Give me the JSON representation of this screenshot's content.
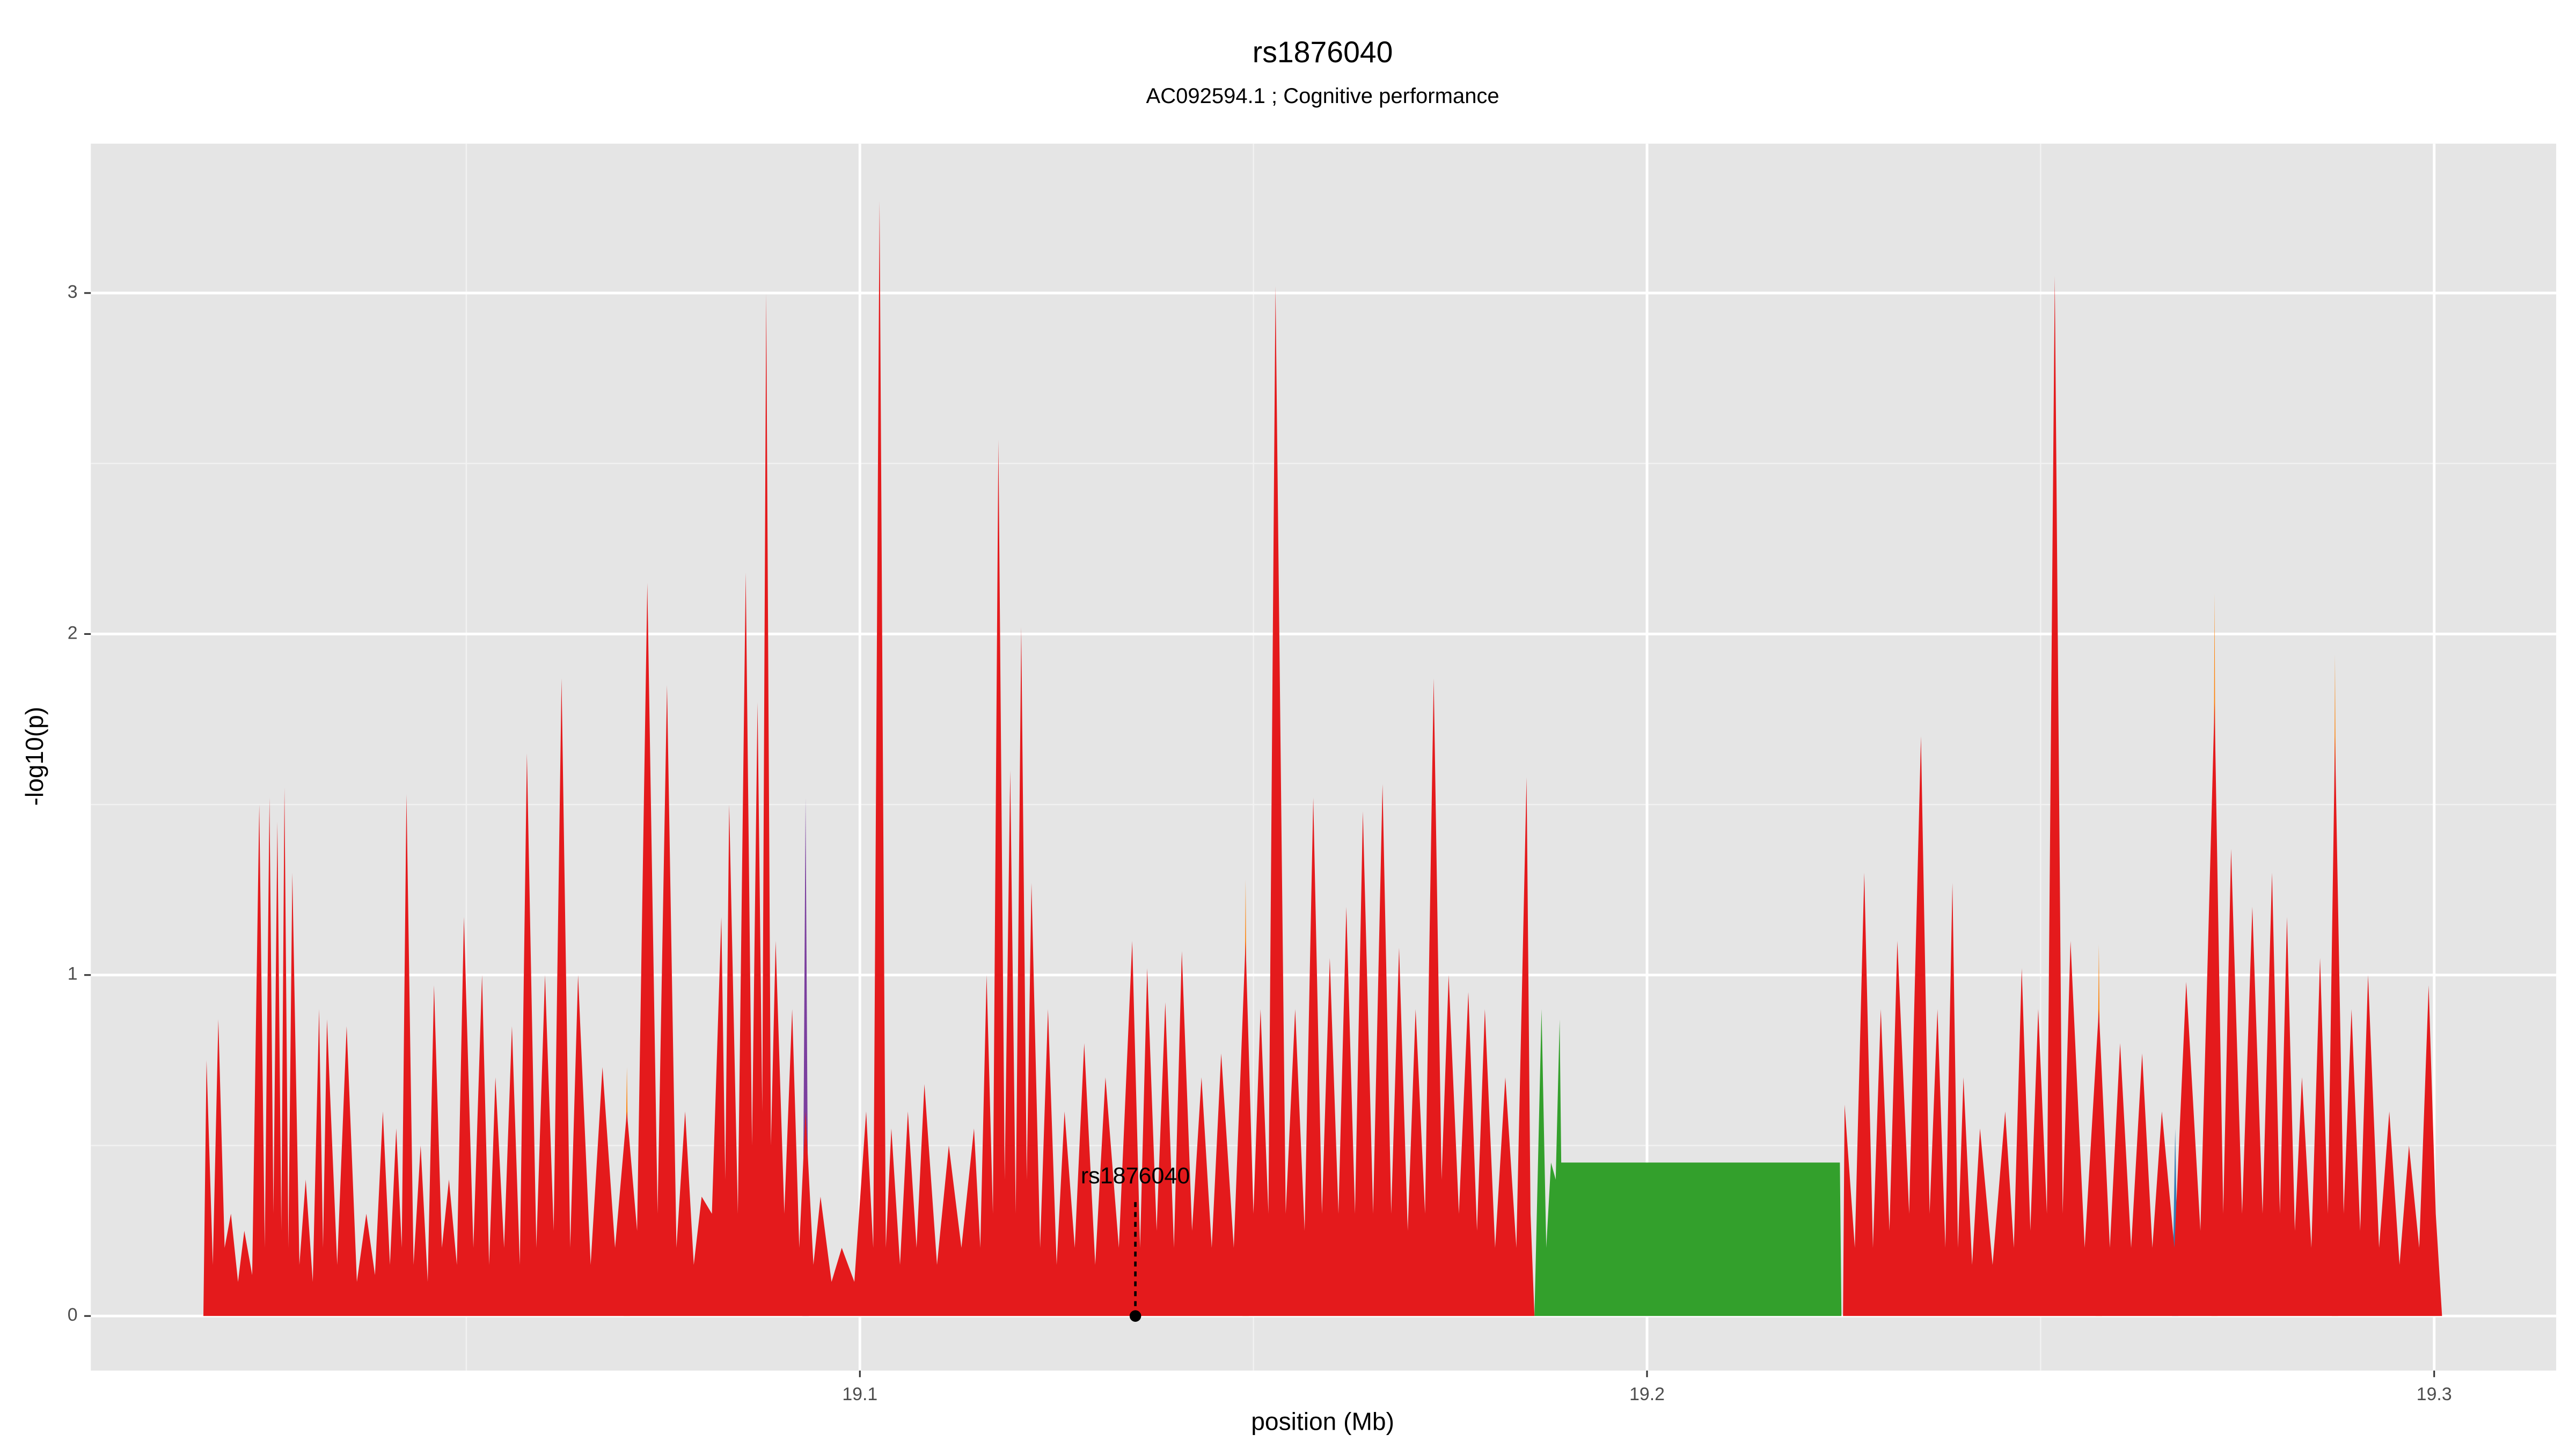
{
  "chart_data": {
    "type": "area",
    "title": "rs1876040",
    "subtitle": "AC092594.1 ; Cognitive performance",
    "xlabel": "position (Mb)",
    "ylabel": "-log10(p)",
    "xlim": [
      19.0023,
      19.3155
    ],
    "ylim": [
      -0.16,
      3.438
    ],
    "xticks": [
      19.1,
      19.2,
      19.3
    ],
    "yticks": [
      0,
      1,
      2,
      3
    ],
    "grid": true,
    "annotation": {
      "text": "rs1876040",
      "x": 19.135,
      "y": 0
    },
    "series": [
      {
        "color": "#377eb8",
        "x": [
          19.2667,
          19.2671,
          19.2675
        ],
        "values": [
          0,
          0.55,
          0
        ]
      },
      {
        "color": "#7b3f9e",
        "x": [
          19.0927,
          19.0931,
          19.0935
        ],
        "values": [
          0,
          1.52,
          0
        ]
      },
      {
        "color": "#ff7f00",
        "x": [
          19.07,
          19.0704,
          19.0708,
          19.1486,
          19.149,
          19.1494,
          19.257,
          19.2574,
          19.2578,
          19.2717,
          19.2721,
          19.2725,
          19.287,
          19.2874,
          19.2878
        ],
        "values": [
          0,
          0.73,
          0,
          0,
          1.28,
          0,
          0,
          1.09,
          0,
          0,
          2.12,
          0,
          0,
          1.94,
          0
        ]
      },
      {
        "color": "#e41a1c",
        "x": [
          19.0166,
          19.017,
          19.0178,
          19.0185,
          19.0193,
          19.0201,
          19.021,
          19.0218,
          19.0228,
          19.0237,
          19.0244,
          19.025,
          19.0255,
          19.026,
          19.0265,
          19.0269,
          19.0274,
          19.0279,
          19.0288,
          19.0296,
          19.0305,
          19.0313,
          19.0318,
          19.0323,
          19.0336,
          19.0348,
          19.0361,
          19.0373,
          19.0384,
          19.0394,
          19.0403,
          19.0411,
          19.0418,
          19.0424,
          19.0433,
          19.0442,
          19.0451,
          19.0459,
          19.0469,
          19.0478,
          19.0488,
          19.0497,
          19.0509,
          19.052,
          19.0529,
          19.0537,
          19.0548,
          19.0558,
          19.0568,
          19.0577,
          19.0589,
          19.06,
          19.0611,
          19.0621,
          19.0632,
          19.0642,
          19.0658,
          19.0673,
          19.0689,
          19.0704,
          19.0717,
          19.073,
          19.0743,
          19.0755,
          19.0767,
          19.0778,
          19.0789,
          19.0799,
          19.0812,
          19.0824,
          19.0829,
          19.0834,
          19.0845,
          19.0855,
          19.0863,
          19.087,
          19.0876,
          19.0881,
          19.0887,
          19.0893,
          19.0904,
          19.0914,
          19.0923,
          19.0931,
          19.0941,
          19.095,
          19.0964,
          19.0977,
          19.0993,
          19.1008,
          19.1017,
          19.1025,
          19.1033,
          19.104,
          19.1051,
          19.1061,
          19.1072,
          19.1082,
          19.1098,
          19.1113,
          19.1129,
          19.1145,
          19.1153,
          19.1161,
          19.1169,
          19.1176,
          19.1184,
          19.1191,
          19.1198,
          19.1205,
          19.1212,
          19.1218,
          19.1229,
          19.1239,
          19.125,
          19.126,
          19.1273,
          19.1285,
          19.1299,
          19.1312,
          19.1329,
          19.1346,
          19.1356,
          19.1365,
          19.1377,
          19.1388,
          19.1399,
          19.1409,
          19.1422,
          19.1434,
          19.1447,
          19.1459,
          19.1475,
          19.149,
          19.15,
          19.1509,
          19.1519,
          19.1528,
          19.1541,
          19.1553,
          19.1565,
          19.1576,
          19.1587,
          19.1597,
          19.1608,
          19.1618,
          19.1629,
          19.1639,
          19.1652,
          19.1664,
          19.1675,
          19.1685,
          19.1696,
          19.1706,
          19.1718,
          19.1729,
          19.1739,
          19.1748,
          19.1761,
          19.1773,
          19.1784,
          19.1794,
          19.1807,
          19.182,
          19.1834,
          19.1847,
          19.1852,
          19.1857,
          19.2053,
          19.2249,
          19.2251,
          19.2264,
          19.2276,
          19.2287,
          19.2297,
          19.2308,
          19.2318,
          19.2333,
          19.2348,
          19.2359,
          19.2369,
          19.2379,
          19.2388,
          19.2395,
          19.2402,
          19.2413,
          19.2423,
          19.2439,
          19.2455,
          19.2466,
          19.2476,
          19.2487,
          19.2497,
          19.2508,
          19.2518,
          19.2528,
          19.2538,
          19.2556,
          19.2574,
          19.2588,
          19.2601,
          19.2615,
          19.2629,
          19.2642,
          19.2654,
          19.267,
          19.2685,
          19.2703,
          19.2721,
          19.2732,
          19.2742,
          19.2756,
          19.2769,
          19.2782,
          19.2794,
          19.2804,
          19.2813,
          19.2823,
          19.2832,
          19.2844,
          19.2855,
          19.2865,
          19.2874,
          19.2885,
          19.2895,
          19.2906,
          19.2916,
          19.293,
          19.2943,
          19.2956,
          19.2968,
          19.2981,
          19.2993,
          19.3002,
          19.301
        ],
        "values": [
          0,
          0.75,
          0.15,
          0.87,
          0.2,
          0.3,
          0.1,
          0.25,
          0.12,
          1.5,
          0.2,
          1.52,
          0.3,
          1.45,
          0.25,
          1.55,
          0.2,
          1.3,
          0.15,
          0.4,
          0.1,
          0.9,
          0.2,
          0.87,
          0.15,
          0.85,
          0.1,
          0.3,
          0.12,
          0.6,
          0.15,
          0.55,
          0.2,
          1.53,
          0.15,
          0.5,
          0.1,
          0.97,
          0.2,
          0.4,
          0.15,
          1.17,
          0.2,
          1.0,
          0.15,
          0.7,
          0.2,
          0.85,
          0.15,
          1.65,
          0.2,
          1.0,
          0.25,
          1.87,
          0.2,
          1.0,
          0.15,
          0.73,
          0.2,
          0.6,
          0.25,
          2.15,
          0.3,
          1.85,
          0.2,
          0.6,
          0.15,
          0.35,
          0.3,
          1.17,
          0.4,
          1.5,
          0.3,
          2.18,
          0.5,
          1.8,
          0.6,
          3.0,
          0.5,
          1.1,
          0.3,
          0.9,
          0.2,
          0.6,
          0.15,
          0.35,
          0.1,
          0.2,
          0.1,
          0.6,
          0.2,
          3.27,
          0.2,
          0.55,
          0.15,
          0.6,
          0.2,
          0.68,
          0.15,
          0.5,
          0.2,
          0.55,
          0.2,
          1.0,
          0.3,
          2.57,
          0.4,
          1.6,
          0.3,
          2.02,
          0.4,
          1.27,
          0.2,
          0.9,
          0.15,
          0.6,
          0.2,
          0.8,
          0.15,
          0.7,
          0.2,
          1.1,
          0.2,
          1.02,
          0.25,
          0.92,
          0.2,
          1.07,
          0.25,
          0.7,
          0.2,
          0.77,
          0.2,
          1.1,
          0.3,
          0.9,
          0.3,
          3.02,
          0.3,
          0.9,
          0.25,
          1.52,
          0.3,
          1.05,
          0.3,
          1.2,
          0.3,
          1.48,
          0.3,
          1.56,
          0.3,
          1.08,
          0.25,
          0.9,
          0.3,
          1.87,
          0.4,
          1.0,
          0.3,
          0.95,
          0.25,
          0.9,
          0.2,
          0.7,
          0.2,
          1.58,
          0.3,
          0,
          null,
          0,
          0.62,
          0.2,
          1.3,
          0.2,
          0.9,
          0.25,
          1.1,
          0.3,
          1.7,
          0.3,
          0.9,
          0.2,
          1.27,
          0.2,
          0.7,
          0.15,
          0.55,
          0.15,
          0.6,
          0.2,
          1.02,
          0.25,
          0.9,
          0.3,
          3.05,
          0.3,
          1.1,
          0.2,
          0.9,
          0.2,
          0.8,
          0.2,
          0.77,
          0.2,
          0.6,
          0.2,
          0.98,
          0.25,
          1.8,
          0.3,
          1.37,
          0.3,
          1.2,
          0.3,
          1.3,
          0.3,
          1.17,
          0.25,
          0.7,
          0.2,
          1.05,
          0.3,
          1.7,
          0.3,
          0.9,
          0.25,
          1.0,
          0.2,
          0.6,
          0.15,
          0.5,
          0.2,
          0.97,
          0.3,
          0
        ]
      },
      {
        "color": "#33a02c",
        "x": [
          19.1857,
          19.1866,
          19.1872,
          19.1878,
          19.1884,
          19.1889,
          19.1891,
          19.2245,
          19.2247
        ],
        "values": [
          0,
          0.9,
          0.2,
          0.45,
          0.4,
          0.87,
          0.45,
          0.45,
          0
        ]
      }
    ]
  }
}
